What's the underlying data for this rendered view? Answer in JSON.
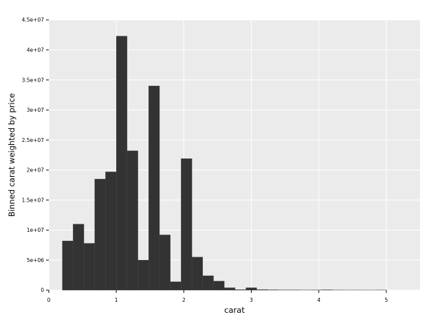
{
  "chart_data": {
    "type": "bar",
    "xlabel": "carat",
    "ylabel": "Binned carat weighted by price",
    "xlim": [
      0,
      5.5
    ],
    "ylim": [
      0,
      45000000
    ],
    "x_ticks": [
      0,
      1,
      2,
      3,
      4,
      5
    ],
    "x_tick_labels": [
      "0",
      "1",
      "2",
      "3",
      "4",
      "5"
    ],
    "y_ticks": [
      0,
      5000000,
      10000000,
      15000000,
      20000000,
      25000000,
      30000000,
      35000000,
      40000000,
      45000000
    ],
    "y_tick_labels": [
      "0",
      "5e+06",
      "1e+07",
      "1.5e+07",
      "2e+07",
      "2.5e+07",
      "3e+07",
      "3.5e+07",
      "4e+07",
      "4.5e+07"
    ],
    "grid": true,
    "bar_color": "#333333",
    "panel_color": "#ebebeb",
    "grid_color": "#ffffff",
    "bins": [
      {
        "x0": 0.2,
        "x1": 0.36,
        "value": 8200000
      },
      {
        "x0": 0.36,
        "x1": 0.52,
        "value": 11000000
      },
      {
        "x0": 0.52,
        "x1": 0.68,
        "value": 7800000
      },
      {
        "x0": 0.68,
        "x1": 0.84,
        "value": 18500000
      },
      {
        "x0": 0.84,
        "x1": 1.0,
        "value": 19700000
      },
      {
        "x0": 1.0,
        "x1": 1.16,
        "value": 42300000
      },
      {
        "x0": 1.16,
        "x1": 1.32,
        "value": 23200000
      },
      {
        "x0": 1.32,
        "x1": 1.48,
        "value": 5000000
      },
      {
        "x0": 1.48,
        "x1": 1.64,
        "value": 34000000
      },
      {
        "x0": 1.64,
        "x1": 1.8,
        "value": 9200000
      },
      {
        "x0": 1.8,
        "x1": 1.96,
        "value": 1400000
      },
      {
        "x0": 1.96,
        "x1": 2.12,
        "value": 21900000
      },
      {
        "x0": 2.12,
        "x1": 2.28,
        "value": 5500000
      },
      {
        "x0": 2.28,
        "x1": 2.44,
        "value": 2400000
      },
      {
        "x0": 2.44,
        "x1": 2.6,
        "value": 1500000
      },
      {
        "x0": 2.6,
        "x1": 2.76,
        "value": 400000
      },
      {
        "x0": 2.76,
        "x1": 2.92,
        "value": 80000
      },
      {
        "x0": 2.92,
        "x1": 3.08,
        "value": 400000
      },
      {
        "x0": 3.08,
        "x1": 3.24,
        "value": 100000
      },
      {
        "x0": 3.24,
        "x1": 3.4,
        "value": 60000
      },
      {
        "x0": 3.4,
        "x1": 3.56,
        "value": 40000
      },
      {
        "x0": 3.56,
        "x1": 3.72,
        "value": 40000
      },
      {
        "x0": 3.72,
        "x1": 3.88,
        "value": 20000
      },
      {
        "x0": 3.88,
        "x1": 4.04,
        "value": 30000
      },
      {
        "x0": 4.04,
        "x1": 4.2,
        "value": 60000
      },
      {
        "x0": 4.2,
        "x1": 4.36,
        "value": 20000
      },
      {
        "x0": 4.36,
        "x1": 4.52,
        "value": 15000
      },
      {
        "x0": 4.52,
        "x1": 4.68,
        "value": 15000
      },
      {
        "x0": 4.68,
        "x1": 4.84,
        "value": 10000
      },
      {
        "x0": 4.84,
        "x1": 5.0,
        "value": 20000
      }
    ]
  }
}
